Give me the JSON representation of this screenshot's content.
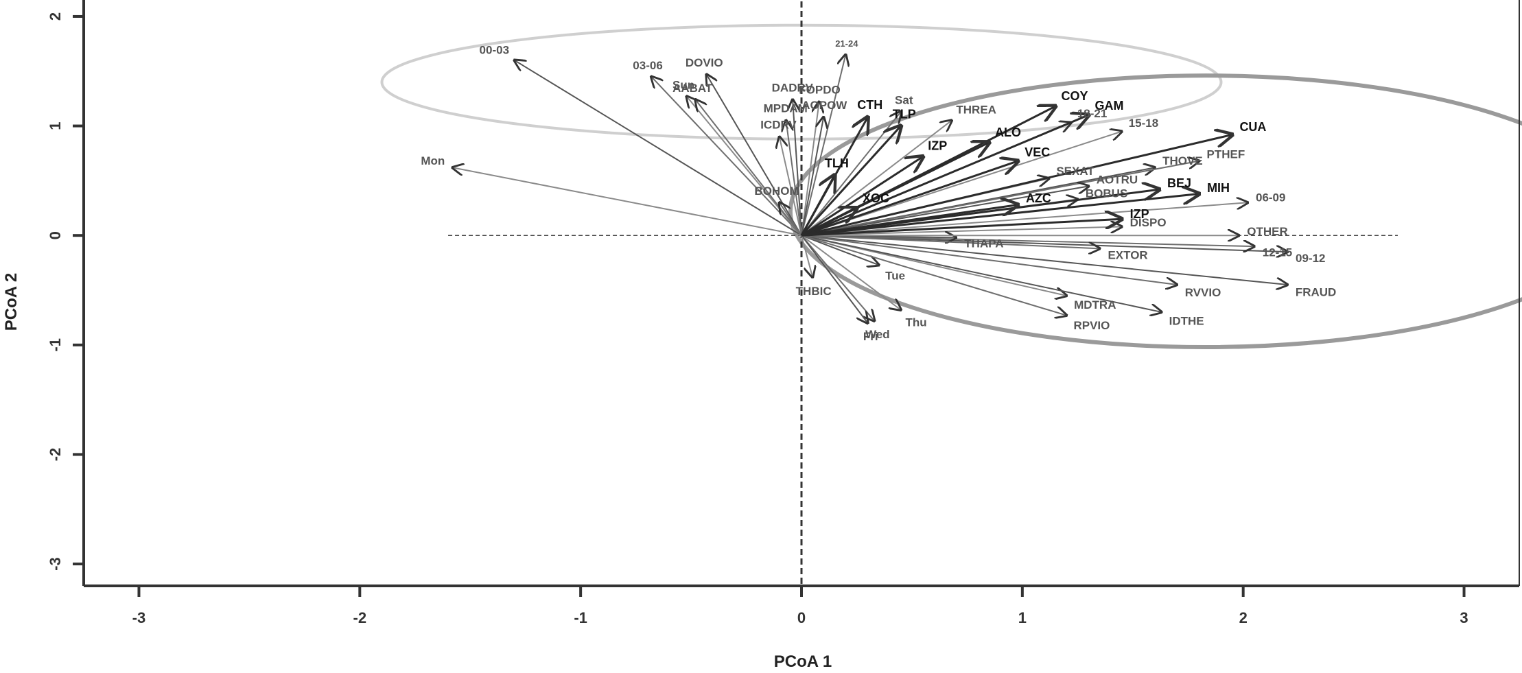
{
  "chart_data": {
    "type": "scatter",
    "title": "",
    "xlabel": "PCoA 1",
    "ylabel": "PCoA 2",
    "xlim": [
      -3.25,
      3.25
    ],
    "ylim": [
      -3.2,
      2.15
    ],
    "xticks": [
      -3,
      -2,
      -1,
      0,
      1,
      2,
      3
    ],
    "yticks": [
      -3,
      -2,
      -1,
      0,
      1,
      2
    ],
    "xtick_labels": [
      "-3",
      "-2",
      "-1",
      "0",
      "1",
      "2",
      "3"
    ],
    "ytick_labels": [
      "-3",
      "-2",
      "-1",
      "0",
      "1",
      "2"
    ],
    "grid": false,
    "reference_lines": {
      "x": 0,
      "y": 0
    },
    "ellipses": [
      {
        "cx": -0.0,
        "cy": 1.4,
        "rx": 1.9,
        "ry": 0.52,
        "color": "#cfcfcf"
      },
      {
        "cx": 1.83,
        "cy": 0.22,
        "rx": 1.88,
        "ry": 1.24,
        "color": "#9a9a9a"
      }
    ],
    "vectors": [
      {
        "label": "00-03",
        "x": -1.3,
        "y": 1.6,
        "style": "normal"
      },
      {
        "label": "03-06",
        "x": -0.68,
        "y": 1.45,
        "style": "normal"
      },
      {
        "label": "06-09",
        "x": 2.02,
        "y": 0.3,
        "style": "normal"
      },
      {
        "label": "09-12",
        "x": 2.2,
        "y": -0.15,
        "style": "normal"
      },
      {
        "label": "12-15",
        "x": 2.05,
        "y": -0.1,
        "style": "normal"
      },
      {
        "label": "15-18",
        "x": 1.45,
        "y": 0.95,
        "style": "normal"
      },
      {
        "label": "18-21",
        "x": 1.22,
        "y": 1.03,
        "style": "normal"
      },
      {
        "label": "21-24",
        "x": 0.2,
        "y": 1.65,
        "style": "small"
      },
      {
        "label": "Mon",
        "x": -1.58,
        "y": 0.62,
        "style": "normal"
      },
      {
        "label": "Tue",
        "x": 0.35,
        "y": -0.27,
        "style": "normal"
      },
      {
        "label": "Wed",
        "x": 0.33,
        "y": -0.78,
        "style": "normal"
      },
      {
        "label": "Thu",
        "x": 0.45,
        "y": -0.68,
        "style": "normal"
      },
      {
        "label": "Fri",
        "x": 0.3,
        "y": -0.8,
        "style": "normal"
      },
      {
        "label": "Sat",
        "x": 0.45,
        "y": 1.13,
        "style": "normal"
      },
      {
        "label": "Sun",
        "x": -0.52,
        "y": 1.27,
        "style": "normal"
      },
      {
        "label": "DOVIO",
        "x": -0.43,
        "y": 1.47,
        "style": "normal"
      },
      {
        "label": "AABAT",
        "x": -0.48,
        "y": 1.24,
        "style": "normal"
      },
      {
        "label": "ICDRV",
        "x": -0.1,
        "y": 0.9,
        "style": "normal"
      },
      {
        "label": "DADRV",
        "x": -0.04,
        "y": 1.24,
        "style": "normal"
      },
      {
        "label": "MPDAM",
        "x": -0.07,
        "y": 1.05,
        "style": "normal"
      },
      {
        "label": "FOPDO",
        "x": 0.08,
        "y": 1.22,
        "style": "normal"
      },
      {
        "label": "AOPOW",
        "x": 0.1,
        "y": 1.08,
        "style": "normal"
      },
      {
        "label": "BOHOM",
        "x": -0.1,
        "y": 0.3,
        "style": "normal"
      },
      {
        "label": "THREA",
        "x": 0.68,
        "y": 1.05,
        "style": "normal"
      },
      {
        "label": "THOVE",
        "x": 1.6,
        "y": 0.62,
        "style": "normal"
      },
      {
        "label": "PTHEF",
        "x": 1.8,
        "y": 0.68,
        "style": "normal"
      },
      {
        "label": "SEXAT",
        "x": 1.12,
        "y": 0.52,
        "style": "normal"
      },
      {
        "label": "AOTRU",
        "x": 1.3,
        "y": 0.45,
        "style": "normal"
      },
      {
        "label": "BOBUS",
        "x": 1.25,
        "y": 0.33,
        "style": "normal"
      },
      {
        "label": "DISPO",
        "x": 1.45,
        "y": 0.08,
        "style": "normal"
      },
      {
        "label": "THAPA",
        "x": 0.7,
        "y": -0.02,
        "style": "normal"
      },
      {
        "label": "EXTOR",
        "x": 1.35,
        "y": -0.12,
        "style": "normal"
      },
      {
        "label": "OTHER",
        "x": 1.98,
        "y": 0.0,
        "style": "normal"
      },
      {
        "label": "FRAUD",
        "x": 2.2,
        "y": -0.45,
        "style": "normal"
      },
      {
        "label": "RVVIO",
        "x": 1.7,
        "y": -0.45,
        "style": "normal"
      },
      {
        "label": "MDTRA",
        "x": 1.2,
        "y": -0.55,
        "style": "normal"
      },
      {
        "label": "IDTHE",
        "x": 1.63,
        "y": -0.7,
        "style": "normal"
      },
      {
        "label": "RPVIO",
        "x": 1.2,
        "y": -0.73,
        "style": "normal"
      },
      {
        "label": "THBIC",
        "x": 0.05,
        "y": -0.38,
        "style": "normal"
      },
      {
        "label": "COY",
        "x": 1.15,
        "y": 1.18,
        "style": "bold"
      },
      {
        "label": "GAM",
        "x": 1.3,
        "y": 1.1,
        "style": "bold"
      },
      {
        "label": "CUA",
        "x": 1.95,
        "y": 0.92,
        "style": "bold"
      },
      {
        "label": "ALO",
        "x": 0.85,
        "y": 0.85,
        "style": "bold"
      },
      {
        "label": "VEC",
        "x": 0.98,
        "y": 0.68,
        "style": "bold"
      },
      {
        "label": "BEJ",
        "x": 1.62,
        "y": 0.42,
        "style": "bold"
      },
      {
        "label": "MIH",
        "x": 1.8,
        "y": 0.38,
        "style": "bold"
      },
      {
        "label": "IZP",
        "x": 0.55,
        "y": 0.72,
        "style": "bold"
      },
      {
        "label": "IZP",
        "x": 1.45,
        "y": 0.15,
        "style": "bold"
      },
      {
        "label": "AZC",
        "x": 0.98,
        "y": 0.28,
        "style": "bold"
      },
      {
        "label": "CTH",
        "x": 0.3,
        "y": 1.08,
        "style": "bold"
      },
      {
        "label": "TLP",
        "x": 0.45,
        "y": 1.0,
        "style": "bold"
      },
      {
        "label": "TLH",
        "x": 0.15,
        "y": 0.55,
        "style": "bold"
      },
      {
        "label": "XOC",
        "x": 0.25,
        "y": 0.25,
        "style": "bold"
      }
    ]
  }
}
